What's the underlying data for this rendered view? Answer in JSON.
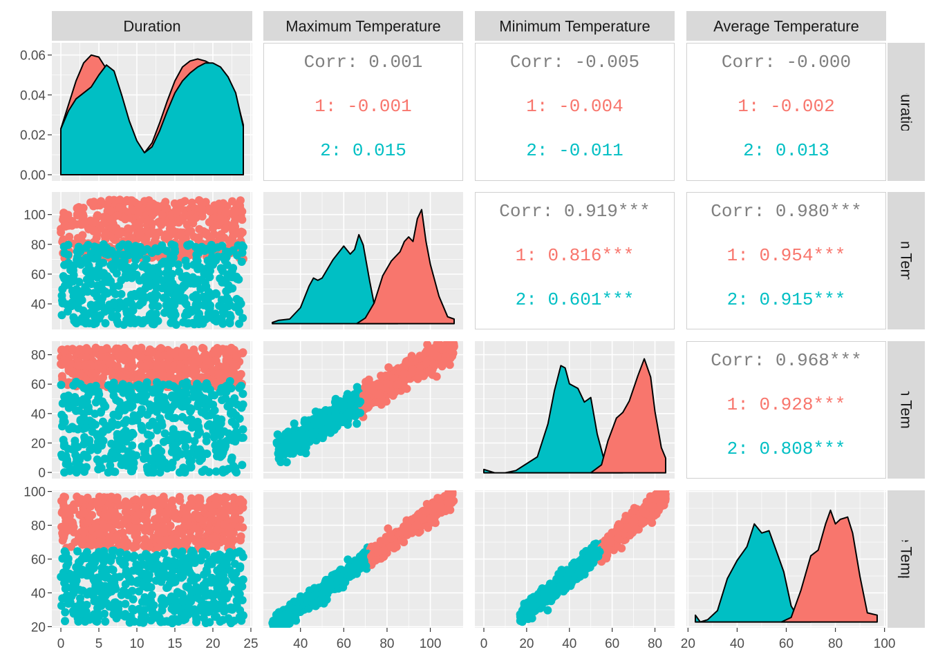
{
  "variables": [
    "Duration",
    "Maximum Temperature",
    "Minimum Temperature",
    "Average Temperature"
  ],
  "group_colors": {
    "1": "#F8766D",
    "2": "#00BFC4"
  },
  "colors": {
    "panel_bg": "#EBEBEB",
    "strip_bg": "#D9D9D9",
    "grid": "#FFFFFF",
    "axis_text": "#4D4D4D",
    "overall_text": "#7F7F7F"
  },
  "chart_data": {
    "type": "scatter",
    "kind": "pairs-plot",
    "groups": [
      "1",
      "2"
    ],
    "variables": [
      "Duration",
      "Maximum Temperature",
      "Minimum Temperature",
      "Average Temperature"
    ],
    "axes": {
      "Duration": {
        "range": [
          0,
          24
        ],
        "x_ticks": [
          "0",
          "5",
          "10",
          "15",
          "20",
          "25"
        ],
        "y_ticks": [
          "0.00",
          "0.02",
          "0.04",
          "0.06"
        ]
      },
      "Maximum Temperature": {
        "range": [
          27,
          111
        ],
        "x_ticks": [
          "40",
          "60",
          "80",
          "100"
        ],
        "y_ticks": [
          "40",
          "60",
          "80",
          "100"
        ]
      },
      "Minimum Temperature": {
        "range": [
          0,
          85
        ],
        "x_ticks": [
          "0",
          "20",
          "40",
          "60",
          "80"
        ],
        "y_ticks": [
          "0",
          "20",
          "40",
          "60",
          "80"
        ]
      },
      "Average Temperature": {
        "range": [
          23,
          97
        ],
        "x_ticks": [
          "20",
          "40",
          "60",
          "80",
          "100"
        ],
        "y_ticks": [
          "20",
          "40",
          "60",
          "80",
          "100"
        ]
      }
    },
    "duration_density": {
      "ylim": [
        0,
        0.06
      ],
      "series": [
        {
          "group": "1",
          "x": [
            0,
            1,
            2,
            3,
            4,
            5,
            6,
            7,
            8,
            9,
            10,
            11,
            12,
            13,
            14,
            15,
            16,
            17,
            18,
            19,
            20,
            21,
            22,
            23,
            24
          ],
          "y": [
            0.023,
            0.035,
            0.047,
            0.056,
            0.06,
            0.059,
            0.053,
            0.044,
            0.033,
            0.022,
            0.014,
            0.011,
            0.016,
            0.026,
            0.037,
            0.047,
            0.054,
            0.057,
            0.058,
            0.057,
            0.055,
            0.052,
            0.047,
            0.04,
            0.025
          ]
        },
        {
          "group": "2",
          "x": [
            0,
            1,
            2,
            3,
            4,
            5,
            6,
            7,
            8,
            9,
            10,
            11,
            12,
            13,
            14,
            15,
            16,
            17,
            18,
            19,
            20,
            21,
            22,
            23,
            24
          ],
          "y": [
            0.023,
            0.032,
            0.038,
            0.041,
            0.044,
            0.05,
            0.055,
            0.052,
            0.04,
            0.027,
            0.017,
            0.011,
            0.014,
            0.022,
            0.032,
            0.041,
            0.047,
            0.051,
            0.054,
            0.056,
            0.056,
            0.054,
            0.049,
            0.041,
            0.024
          ]
        }
      ]
    },
    "max_temp_density": {
      "series": [
        {
          "group": "1",
          "x": [
            66,
            70,
            74,
            78,
            82,
            86,
            88,
            90,
            92,
            94,
            96,
            98,
            100,
            104,
            108,
            111
          ],
          "y": [
            0.0,
            0.05,
            0.18,
            0.42,
            0.55,
            0.63,
            0.72,
            0.76,
            0.72,
            0.92,
            1.0,
            0.72,
            0.52,
            0.24,
            0.06,
            0.04
          ]
        },
        {
          "group": "2",
          "x": [
            27,
            30,
            35,
            40,
            44,
            46,
            48,
            50,
            55,
            60,
            63,
            65,
            67,
            69,
            72,
            75,
            78,
            80,
            85
          ],
          "y": [
            0.01,
            0.03,
            0.04,
            0.14,
            0.33,
            0.4,
            0.38,
            0.4,
            0.56,
            0.68,
            0.61,
            0.65,
            0.78,
            0.69,
            0.37,
            0.08,
            0.01,
            0.0,
            0.0
          ]
        }
      ]
    },
    "min_temp_density": {
      "series": [
        {
          "group": "1",
          "x": [
            50,
            55,
            58,
            62,
            65,
            68,
            72,
            75,
            78,
            80,
            83,
            85
          ],
          "y": [
            0.0,
            0.07,
            0.28,
            0.48,
            0.53,
            0.63,
            0.85,
            1.0,
            0.84,
            0.54,
            0.22,
            0.13
          ]
        },
        {
          "group": "2",
          "x": [
            0,
            5,
            10,
            15,
            20,
            25,
            30,
            33,
            36,
            38,
            40,
            44,
            47,
            50,
            53,
            56,
            60,
            65
          ],
          "y": [
            0.03,
            0.0,
            0.0,
            0.02,
            0.08,
            0.14,
            0.43,
            0.72,
            0.94,
            0.92,
            0.78,
            0.74,
            0.62,
            0.66,
            0.34,
            0.13,
            0.02,
            0.0
          ]
        }
      ]
    },
    "avg_temp_density": {
      "series": [
        {
          "group": "1",
          "x": [
            58,
            62,
            66,
            70,
            73,
            76,
            78,
            80,
            82,
            85,
            87,
            90,
            93,
            97
          ],
          "y": [
            0.0,
            0.04,
            0.28,
            0.58,
            0.63,
            0.86,
            0.98,
            0.86,
            0.9,
            0.92,
            0.78,
            0.4,
            0.08,
            0.06
          ]
        },
        {
          "group": "2",
          "x": [
            23,
            25,
            28,
            32,
            36,
            40,
            44,
            47,
            50,
            53,
            56,
            59,
            62,
            66,
            70
          ],
          "y": [
            0.06,
            0.0,
            0.02,
            0.1,
            0.38,
            0.54,
            0.66,
            0.86,
            0.78,
            0.8,
            0.62,
            0.44,
            0.14,
            0.0,
            0.0
          ]
        }
      ]
    },
    "scatter_ranges": {
      "duration_vs_max": {
        "1": [
          70,
          110
        ],
        "2": [
          26,
          80
        ]
      },
      "duration_vs_min": {
        "1": [
          58,
          85
        ],
        "2": [
          0,
          62
        ]
      },
      "duration_vs_avg": {
        "1": [
          66,
          97
        ],
        "2": [
          22,
          65
        ]
      },
      "max_vs_min_trend": {
        "slope": 0.86,
        "intercept": -10,
        "split_x": 68
      },
      "max_vs_avg_trend": {
        "slope": 0.92,
        "intercept": -5,
        "split_x": 72
      },
      "min_vs_avg_trend": {
        "slope": 1.05,
        "intercept": 8,
        "split_x": 55
      }
    },
    "correlations": [
      {
        "row": "Duration",
        "col": "Maximum Temperature",
        "overall": "Corr: 0.001",
        "g1": "1: -0.001",
        "g2": "2: 0.015"
      },
      {
        "row": "Duration",
        "col": "Minimum Temperature",
        "overall": "Corr: -0.005",
        "g1": "1: -0.004",
        "g2": "2: -0.011"
      },
      {
        "row": "Duration",
        "col": "Average Temperature",
        "overall": "Corr: -0.000",
        "g1": "1: -0.002",
        "g2": "2: 0.013"
      },
      {
        "row": "Maximum Temperature",
        "col": "Minimum Temperature",
        "overall": "Corr: 0.919***",
        "g1": "1: 0.816***",
        "g2": "2: 0.601***"
      },
      {
        "row": "Maximum Temperature",
        "col": "Average Temperature",
        "overall": "Corr: 0.980***",
        "g1": "1: 0.954***",
        "g2": "2: 0.915***"
      },
      {
        "row": "Minimum Temperature",
        "col": "Average Temperature",
        "overall": "Corr: 0.968***",
        "g1": "1: 0.928***",
        "g2": "2: 0.808***"
      }
    ]
  }
}
